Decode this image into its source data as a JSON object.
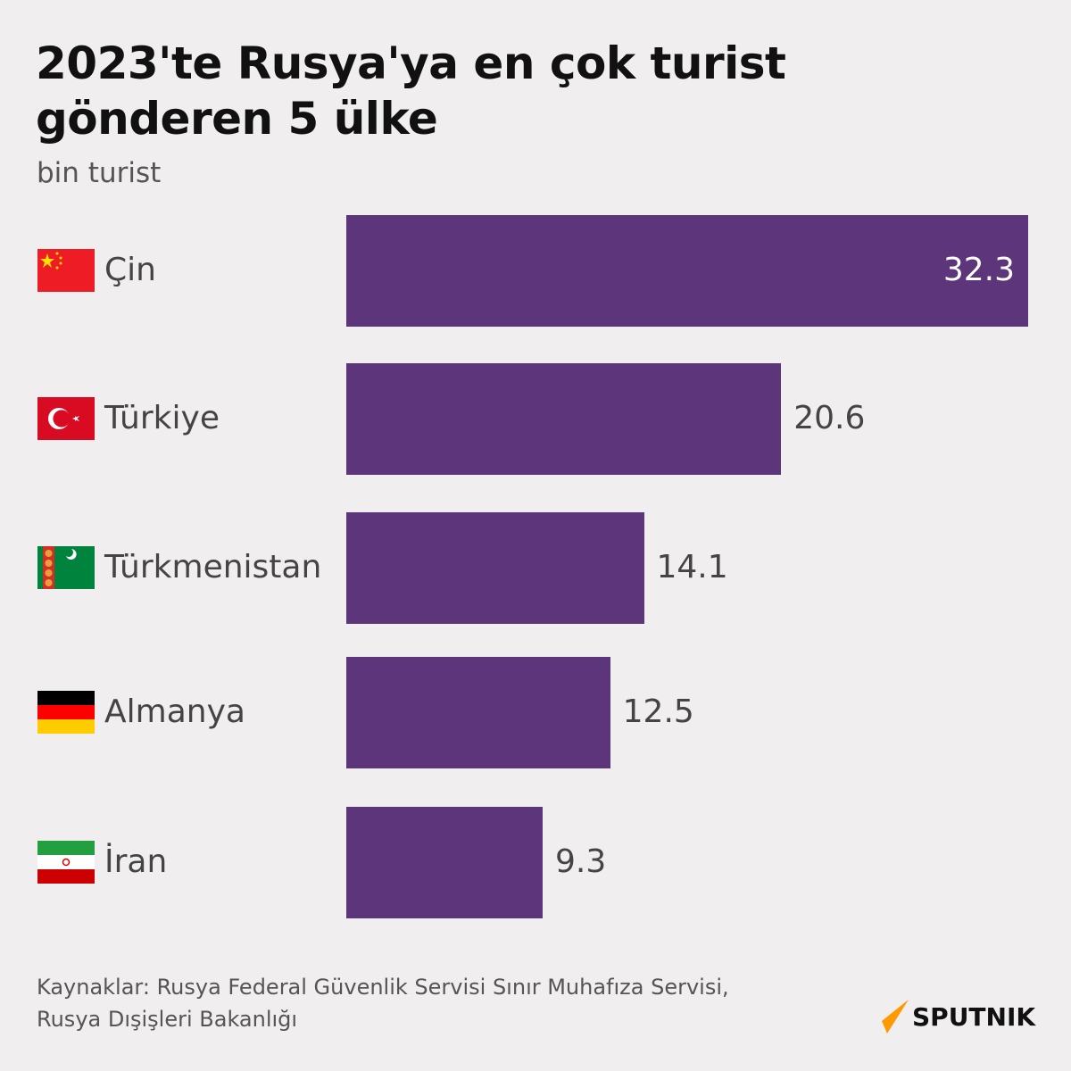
{
  "chart_data": {
    "type": "bar",
    "orientation": "horizontal",
    "title": "2023'te Rusya'ya en çok turist gönderen 5 ülke",
    "unit": "bin turist",
    "categories": [
      "Çin",
      "Türkiye",
      "Türkmenistan",
      "Almanya",
      "İran"
    ],
    "values": [
      32.3,
      20.6,
      14.1,
      12.5,
      9.3
    ],
    "value_labels": [
      "32.3",
      "20.6",
      "14.1",
      "12.5",
      "9.3"
    ],
    "flags": [
      "china-flag",
      "turkey-flag",
      "turkmenistan-flag",
      "germany-flag",
      "iran-flag"
    ],
    "xlim": [
      0,
      32.3
    ],
    "grid": false,
    "bar_color": "#5c357a"
  },
  "source": {
    "line1": "Kaynaklar: Rusya Federal Güvenlik Servisi Sınır Muhafıza Servisi,",
    "line2": "Rusya Dışişleri Bakanlığı"
  },
  "logo": {
    "text": "SPUTNIK",
    "accent": "#ff9900"
  }
}
